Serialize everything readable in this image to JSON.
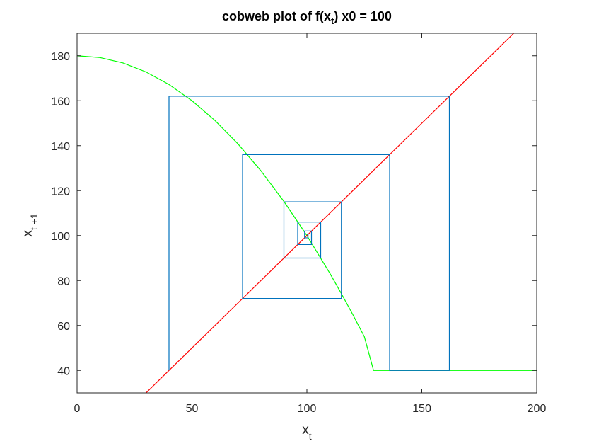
{
  "chart_data": {
    "type": "line",
    "title": {
      "prefix": "cobweb plot of f(x",
      "sub": "t",
      "suffix": ") x0 = 100"
    },
    "xlabel": {
      "base": "x",
      "sub": "t"
    },
    "ylabel": {
      "base": "x",
      "sub": "t +1"
    },
    "xlim": [
      0,
      200
    ],
    "ylim": [
      30,
      190
    ],
    "xticks": [
      0,
      50,
      100,
      150,
      200
    ],
    "yticks": [
      40,
      60,
      80,
      100,
      120,
      140,
      160,
      180
    ],
    "grid": false,
    "colors": {
      "map": "#00ff00",
      "identity": "#ff0000",
      "cobweb": "#0072bd",
      "axes": "#262626"
    },
    "series": [
      {
        "kind": "map",
        "x": [
          0,
          10,
          20,
          30,
          40,
          50,
          60,
          70,
          80,
          90,
          100,
          110,
          115,
          120,
          125,
          129,
          200
        ],
        "y": [
          180,
          179.2,
          176.8,
          172.8,
          167.2,
          160,
          151.2,
          140.8,
          128.8,
          115.2,
          100,
          83.2,
          74.2,
          64.8,
          55,
          40,
          40
        ]
      },
      {
        "kind": "identity",
        "x": [
          0,
          200
        ],
        "y": [
          0,
          200
        ]
      },
      {
        "kind": "cobweb",
        "x": [
          40,
          40,
          162,
          162,
          136,
          136,
          72,
          72,
          115,
          115,
          90,
          90,
          106,
          106,
          96,
          96,
          102,
          102,
          99,
          99,
          100.5,
          100.5,
          100
        ],
        "y": [
          40,
          162,
          162,
          40,
          40,
          136,
          136,
          72,
          72,
          115,
          115,
          90,
          90,
          106,
          106,
          96,
          96,
          102,
          102,
          99,
          99,
          100.5,
          100.5
        ]
      }
    ]
  }
}
